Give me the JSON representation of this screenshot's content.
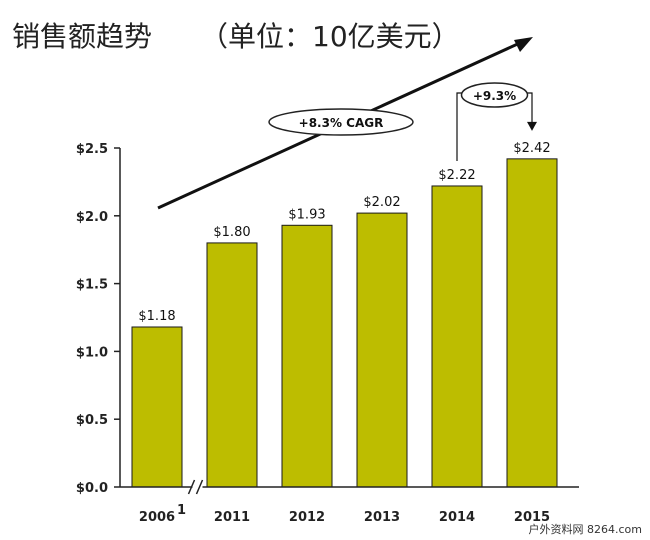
{
  "title": "销售额趋势",
  "unit": "（单位：10亿美元）",
  "watermark": "户外资料网 8264.com",
  "chart_data": {
    "type": "bar",
    "categories": [
      "2006",
      "2011",
      "2012",
      "2013",
      "2014",
      "2015"
    ],
    "category_superscripts": [
      "1",
      "",
      "",
      "",
      "",
      ""
    ],
    "values": [
      1.18,
      1.8,
      1.93,
      2.02,
      2.22,
      2.42
    ],
    "data_labels": [
      "$1.18",
      "$1.80",
      "$1.93",
      "$2.02",
      "$2.22",
      "$2.42"
    ],
    "y_ticks": [
      0.0,
      0.5,
      1.0,
      1.5,
      2.0,
      2.5
    ],
    "y_tick_labels": [
      "$0.0",
      "$0.5",
      "$1.0",
      "$1.5",
      "$2.0",
      "$2.5"
    ],
    "ylim": [
      0,
      2.5
    ],
    "bar_color": "#bdbd00",
    "axis_break_after_index": 0,
    "grid": false,
    "annotations": {
      "cagr": "+8.3% CAGR",
      "yoy": "+9.3%",
      "yoy_from_index": 4,
      "yoy_to_index": 5
    }
  }
}
